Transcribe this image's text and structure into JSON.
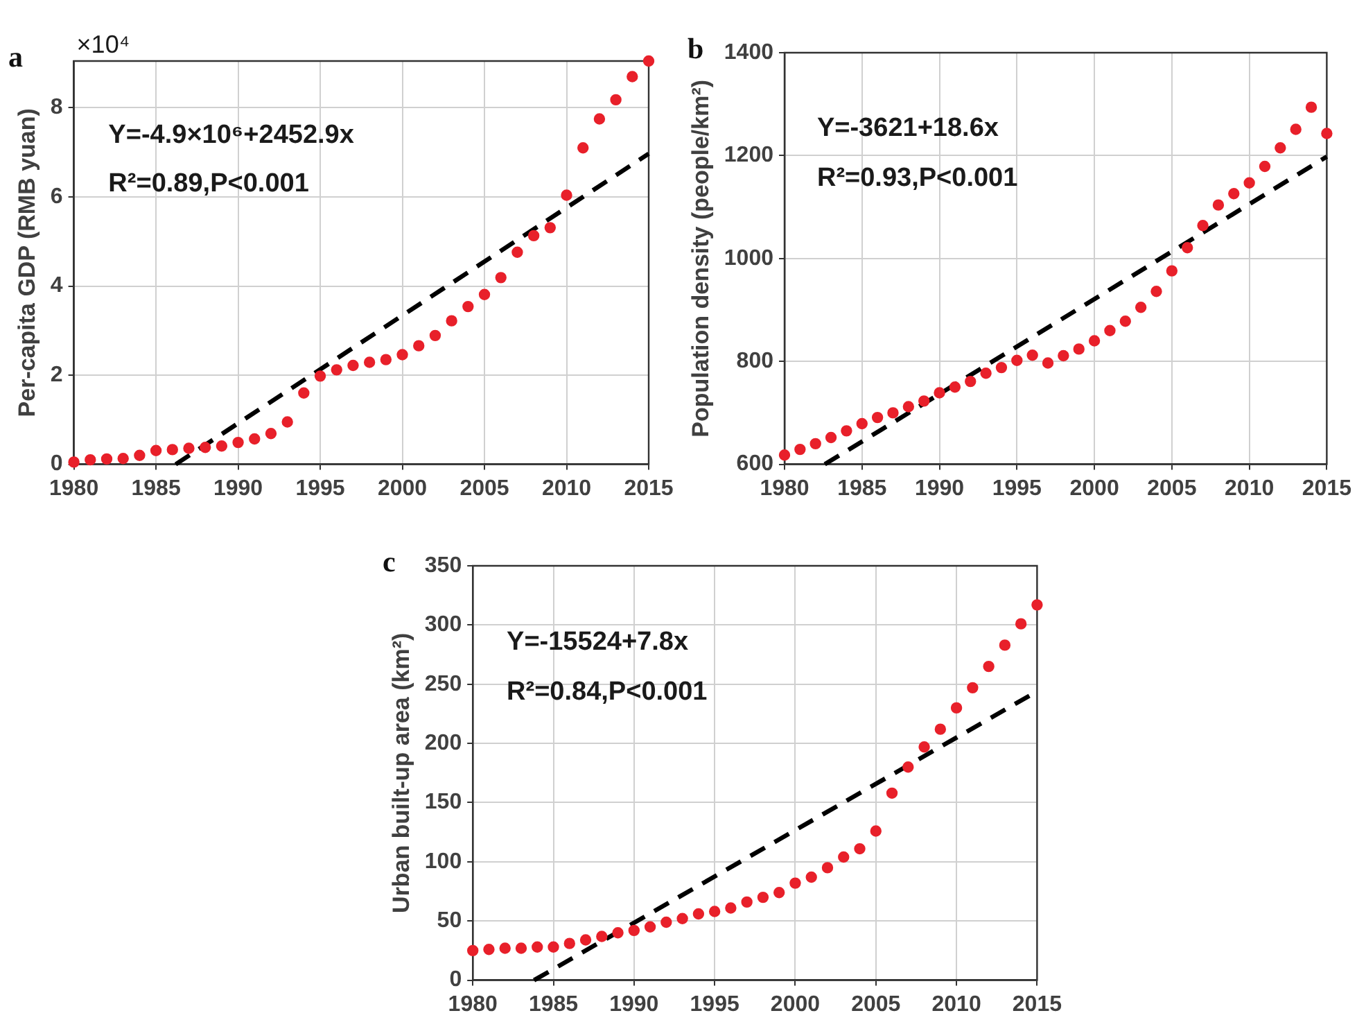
{
  "chart_data": [
    {
      "type": "scatter",
      "title": "a",
      "ylabel": "Per-capita GDP (RMB yuan)",
      "grid": true,
      "xlim": [
        1980,
        2015
      ],
      "xticks": [
        1980,
        1985,
        1990,
        1995,
        2000,
        2005,
        2010,
        2015
      ],
      "ylim": [
        0,
        9.05
      ],
      "yticks": [
        0,
        2,
        4,
        6,
        8
      ],
      "annotations": [
        "×10⁴",
        "Y=-4.9×10⁶+2452.9x",
        "R²=0.89,P<0.001"
      ],
      "series": [
        {
          "marker": "circle",
          "color": "#e8202a",
          "x": [
            1980,
            1981,
            1982,
            1983,
            1984,
            1985,
            1986,
            1987,
            1988,
            1989,
            1990,
            1991,
            1992,
            1993,
            1994,
            1995,
            1996,
            1997,
            1998,
            1999,
            2000,
            2001,
            2002,
            2003,
            2004,
            2005,
            2006,
            2007,
            2008,
            2009,
            2010,
            2011,
            2012,
            2013,
            2014,
            2015
          ],
          "values": [
            0.05,
            0.1,
            0.12,
            0.13,
            0.2,
            0.31,
            0.33,
            0.36,
            0.38,
            0.41,
            0.49,
            0.57,
            0.69,
            0.95,
            1.6,
            1.98,
            2.12,
            2.22,
            2.29,
            2.35,
            2.46,
            2.66,
            2.89,
            3.22,
            3.54,
            3.81,
            4.19,
            4.76,
            5.13,
            5.31,
            6.04,
            7.1,
            7.75,
            8.18,
            8.7,
            9.05
          ]
        },
        {
          "type": "line",
          "marker": "none",
          "color": "#000000",
          "line_style": "dashed",
          "x": [
            1986.2,
            2015
          ],
          "values": [
            0,
            6.97
          ]
        }
      ]
    },
    {
      "type": "scatter",
      "title": "b",
      "ylabel": "Population density (people/km²)",
      "grid": true,
      "xlim": [
        1980,
        2015
      ],
      "xticks": [
        1980,
        1985,
        1990,
        1995,
        2000,
        2005,
        2010,
        2015
      ],
      "ylim": [
        600,
        1400
      ],
      "yticks": [
        600,
        800,
        1000,
        1200,
        1400
      ],
      "annotations": [
        "Y=-3621+18.6x",
        "R²=0.93,P<0.001"
      ],
      "series": [
        {
          "marker": "circle",
          "color": "#e8202a",
          "x": [
            1980,
            1981,
            1982,
            1983,
            1984,
            1985,
            1986,
            1987,
            1988,
            1989,
            1990,
            1991,
            1992,
            1993,
            1994,
            1995,
            1996,
            1997,
            1998,
            1999,
            2000,
            2001,
            2002,
            2003,
            2004,
            2005,
            2006,
            2007,
            2008,
            2009,
            2010,
            2011,
            2012,
            2013,
            2014,
            2015
          ],
          "values": [
            618,
            629,
            640,
            652,
            665,
            679,
            691,
            700,
            712,
            723,
            739,
            750,
            761,
            777,
            788,
            802,
            812,
            797,
            811,
            824,
            840,
            860,
            878,
            905,
            936,
            976,
            1021,
            1064,
            1104,
            1126,
            1147,
            1179,
            1215,
            1251,
            1294,
            1243
          ]
        },
        {
          "type": "line",
          "marker": "none",
          "color": "#000000",
          "line_style": "dashed",
          "x": [
            1982.6,
            2015
          ],
          "values": [
            600,
            1198
          ]
        }
      ]
    },
    {
      "type": "scatter",
      "title": "c",
      "ylabel": "Urban built-up area (km²)",
      "grid": true,
      "xlim": [
        1980,
        2015
      ],
      "xticks": [
        1980,
        1985,
        1990,
        1995,
        2000,
        2005,
        2010,
        2015
      ],
      "ylim": [
        0,
        350
      ],
      "yticks": [
        0,
        50,
        100,
        150,
        200,
        250,
        300,
        350
      ],
      "annotations": [
        "Y=-15524+7.8x",
        "R²=0.84,P<0.001"
      ],
      "series": [
        {
          "marker": "circle",
          "color": "#e8202a",
          "x": [
            1980,
            1981,
            1982,
            1983,
            1984,
            1985,
            1986,
            1987,
            1988,
            1989,
            1990,
            1991,
            1992,
            1993,
            1994,
            1995,
            1996,
            1997,
            1998,
            1999,
            2000,
            2001,
            2002,
            2003,
            2004,
            2005,
            2006,
            2007,
            2008,
            2009,
            2010,
            2011,
            2012,
            2013,
            2014,
            2015
          ],
          "values": [
            25,
            26,
            27,
            27,
            28,
            28,
            31,
            34,
            37,
            40,
            42,
            45,
            49,
            52,
            56,
            58,
            61,
            66,
            70,
            74,
            82,
            87,
            95,
            104,
            111,
            126,
            158,
            180,
            197,
            212,
            230,
            247,
            265,
            283,
            301,
            317
          ]
        },
        {
          "type": "line",
          "marker": "none",
          "color": "#000000",
          "line_style": "dashed",
          "x": [
            1983.8,
            2015
          ],
          "values": [
            0,
            244
          ]
        }
      ]
    }
  ]
}
